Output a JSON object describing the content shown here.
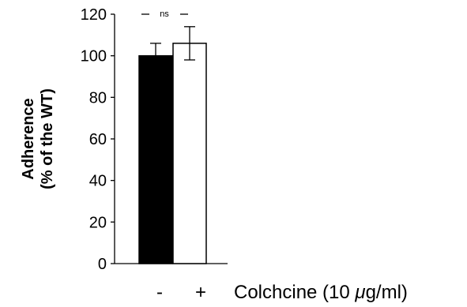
{
  "chart_data": {
    "type": "bar",
    "categories": [
      "-",
      "+"
    ],
    "values": [
      100,
      106
    ],
    "errors": [
      6,
      8
    ],
    "bar_colors": [
      "#000000",
      "#ffffff"
    ],
    "bar_edge_color": "#000000",
    "ylabel_line1": "Adherence",
    "ylabel_line2": "(% of the WT)",
    "xlabel_prefix": "Colchcine (10 ",
    "xlabel_mu": "μ",
    "xlabel_suffix": "g/ml)",
    "ylim": [
      0,
      120
    ],
    "yticks": [
      0,
      20,
      40,
      60,
      80,
      100,
      120
    ],
    "grid": false,
    "legend": "none",
    "significance": {
      "label": "ns",
      "level": 120
    }
  }
}
